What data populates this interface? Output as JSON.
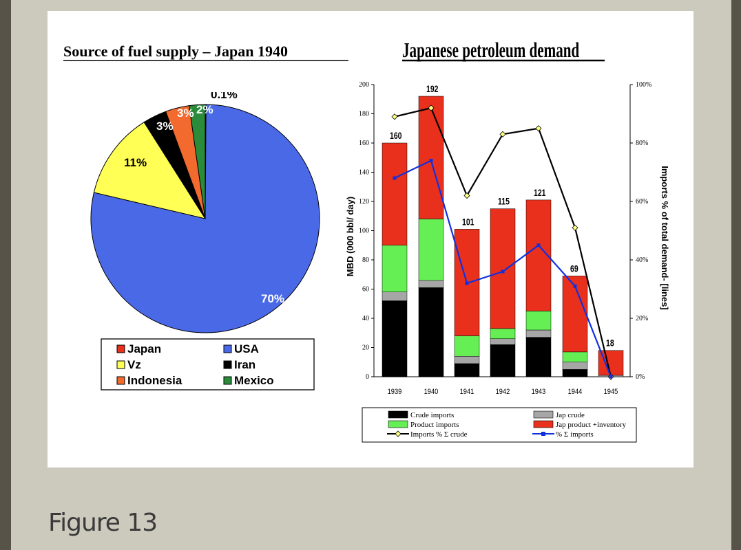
{
  "page": {
    "figure_caption": "Figure 13"
  },
  "chart_data": [
    {
      "type": "pie",
      "title": "Source of fuel supply – Japan 1940",
      "slices": [
        {
          "label": "Japan",
          "value": 0.1,
          "display": "0.1%",
          "color": "#e8301c"
        },
        {
          "label": "USA",
          "value": 70,
          "display": "70%",
          "color": "#4a69e6"
        },
        {
          "label": "Vz",
          "value": 11,
          "display": "11%",
          "color": "#ffff55"
        },
        {
          "label": "Iran",
          "value": 3,
          "display": "3%",
          "color": "#000000"
        },
        {
          "label": "Indonesia",
          "value": 3,
          "display": "3%",
          "color": "#f26a2e"
        },
        {
          "label": "Mexico",
          "value": 2,
          "display": "2%",
          "color": "#2a8c3a"
        }
      ],
      "legend": [
        "Japan",
        "USA",
        "Vz",
        "Iran",
        "Indonesia",
        "Mexico"
      ]
    },
    {
      "type": "bar",
      "stacked": true,
      "title": "Japanese petroleum demand",
      "xlabel": "",
      "ylabel": "MBD (000 bbl/ day)",
      "y2label": "Imports % of total demand- [lines]",
      "categories": [
        "1939",
        "1940",
        "1941",
        "1942",
        "1943",
        "1944",
        "1945"
      ],
      "ylim": [
        0,
        200
      ],
      "yticks": [
        "0",
        "20",
        "40",
        "60",
        "80",
        "100",
        "120",
        "140",
        "160",
        "180",
        "200"
      ],
      "y2lim": [
        0,
        100
      ],
      "y2ticks": [
        "0%",
        "20%",
        "40%",
        "60%",
        "80%",
        "100%"
      ],
      "totals": [
        "160",
        "192",
        "101",
        "115",
        "121",
        "69",
        "18"
      ],
      "series": [
        {
          "name": "Crude imports",
          "color": "#000000",
          "values": [
            52,
            61,
            9,
            22,
            27,
            5,
            0
          ]
        },
        {
          "name": "Jap crude",
          "color": "#a6a6a6",
          "values": [
            6,
            5,
            5,
            4,
            5,
            5,
            1
          ]
        },
        {
          "name": "Product imports",
          "color": "#66ee55",
          "values": [
            32,
            42,
            14,
            7,
            13,
            7,
            0
          ]
        },
        {
          "name": "Jap product +inventory",
          "color": "#e8301c",
          "values": [
            70,
            84,
            73,
            82,
            76,
            52,
            17
          ]
        }
      ],
      "lines": [
        {
          "name": "Imports % Σ crude",
          "color": "#000000",
          "marker": "diamond",
          "values": [
            89,
            92,
            62,
            83,
            85,
            51,
            0
          ]
        },
        {
          "name": "% Σ imports",
          "color": "#1030e0",
          "marker": "square",
          "values": [
            68,
            74,
            32,
            36,
            45,
            31,
            0
          ]
        }
      ],
      "legend": [
        "Crude imports",
        "Jap crude",
        "Product imports",
        "Jap product +inventory",
        "Imports % Σ crude",
        "% Σ imports"
      ]
    }
  ]
}
